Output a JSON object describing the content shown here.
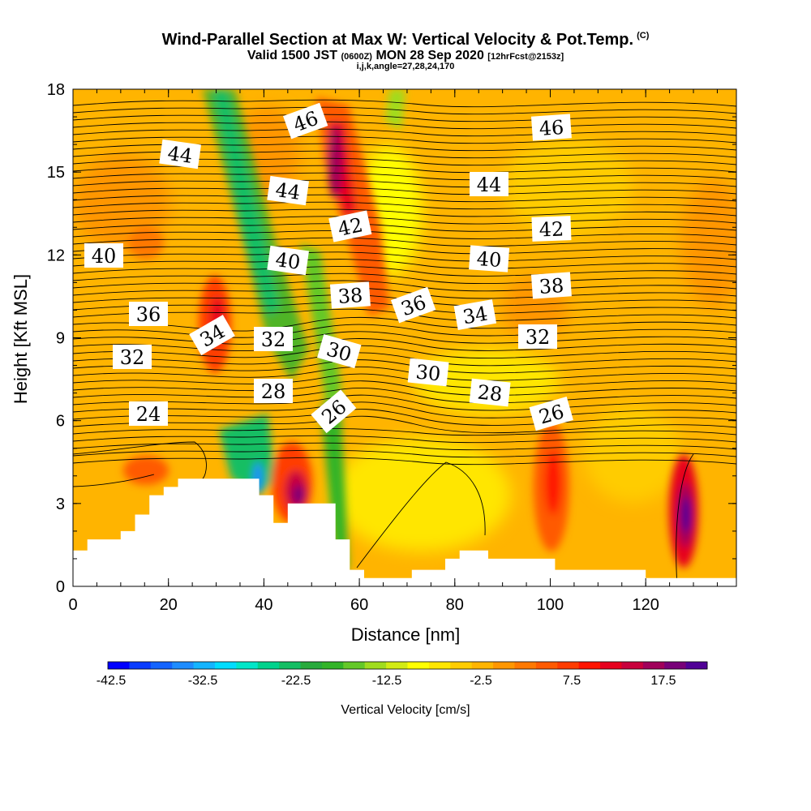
{
  "title": {
    "line1": "Wind-Parallel Section at Max W: Vertical Velocity & Pot.Temp.",
    "copyright": "(C)",
    "line2_a": "Valid 1500 JST",
    "line2_b": "(0600Z)",
    "line2_c": "MON 28 Sep 2020",
    "line2_d": "[12hrFcst@2153z]",
    "line3": "i,j,k,angle=27,28,24,170"
  },
  "chart_data": {
    "type": "heatmap",
    "xlabel": "Distance [nm]",
    "ylabel": "Height [Kft MSL]",
    "xlim": [
      0,
      139
    ],
    "ylim": [
      0,
      18
    ],
    "xticks": [
      "0",
      "20",
      "40",
      "60",
      "80",
      "100",
      "120"
    ],
    "yticks": [
      "0",
      "3",
      "6",
      "9",
      "12",
      "15",
      "18"
    ],
    "colorbar": {
      "title": "Vertical Velocity [cm/s]",
      "labels": [
        "-42.5",
        "-32.5",
        "-22.5",
        "-12.5",
        "-2.5",
        "7.5",
        "17.5"
      ],
      "colors": [
        "#0000ff",
        "#0a3cff",
        "#1464ff",
        "#1e8cff",
        "#14b4ff",
        "#00dcff",
        "#00e6c8",
        "#00d28c",
        "#14be64",
        "#28aa3c",
        "#32b428",
        "#64c828",
        "#a0dc1e",
        "#d2eb14",
        "#ffff00",
        "#ffe600",
        "#ffcc00",
        "#ffb400",
        "#ff9600",
        "#ff7800",
        "#ff5a00",
        "#ff3c00",
        "#ff1400",
        "#e6001e",
        "#c8003c",
        "#a0005a",
        "#780078",
        "#500096"
      ]
    },
    "theta_contour_labels": [
      "46",
      "46",
      "44",
      "44",
      "44",
      "42",
      "42",
      "40",
      "40",
      "40",
      "38",
      "38",
      "36",
      "36",
      "36",
      "34",
      "34",
      "32",
      "32",
      "32",
      "30",
      "30",
      "28",
      "28",
      "26",
      "26",
      "24"
    ],
    "terrain_nm_kft": [
      [
        0,
        1.3
      ],
      [
        3,
        1.3
      ],
      [
        3,
        1.7
      ],
      [
        10,
        1.7
      ],
      [
        10,
        2.0
      ],
      [
        13,
        2.0
      ],
      [
        13,
        2.6
      ],
      [
        16,
        2.6
      ],
      [
        16,
        3.3
      ],
      [
        19,
        3.3
      ],
      [
        19,
        3.6
      ],
      [
        22,
        3.6
      ],
      [
        22,
        3.9
      ],
      [
        39,
        3.9
      ],
      [
        39,
        3.3
      ],
      [
        42,
        3.3
      ],
      [
        42,
        2.3
      ],
      [
        45,
        2.3
      ],
      [
        45,
        3.0
      ],
      [
        55,
        3.0
      ],
      [
        55,
        1.7
      ],
      [
        58,
        1.7
      ],
      [
        58,
        0.6
      ],
      [
        61,
        0.6
      ],
      [
        61,
        0.3
      ],
      [
        71,
        0.3
      ],
      [
        71,
        0.6
      ],
      [
        78,
        0.6
      ],
      [
        78,
        1.0
      ],
      [
        81,
        1.0
      ],
      [
        81,
        1.3
      ],
      [
        87,
        1.3
      ],
      [
        87,
        1.0
      ],
      [
        101,
        1.0
      ],
      [
        101,
        0.6
      ],
      [
        120,
        0.6
      ],
      [
        120,
        0.3
      ],
      [
        139,
        0.3
      ],
      [
        139,
        0
      ],
      [
        0,
        0
      ]
    ]
  }
}
